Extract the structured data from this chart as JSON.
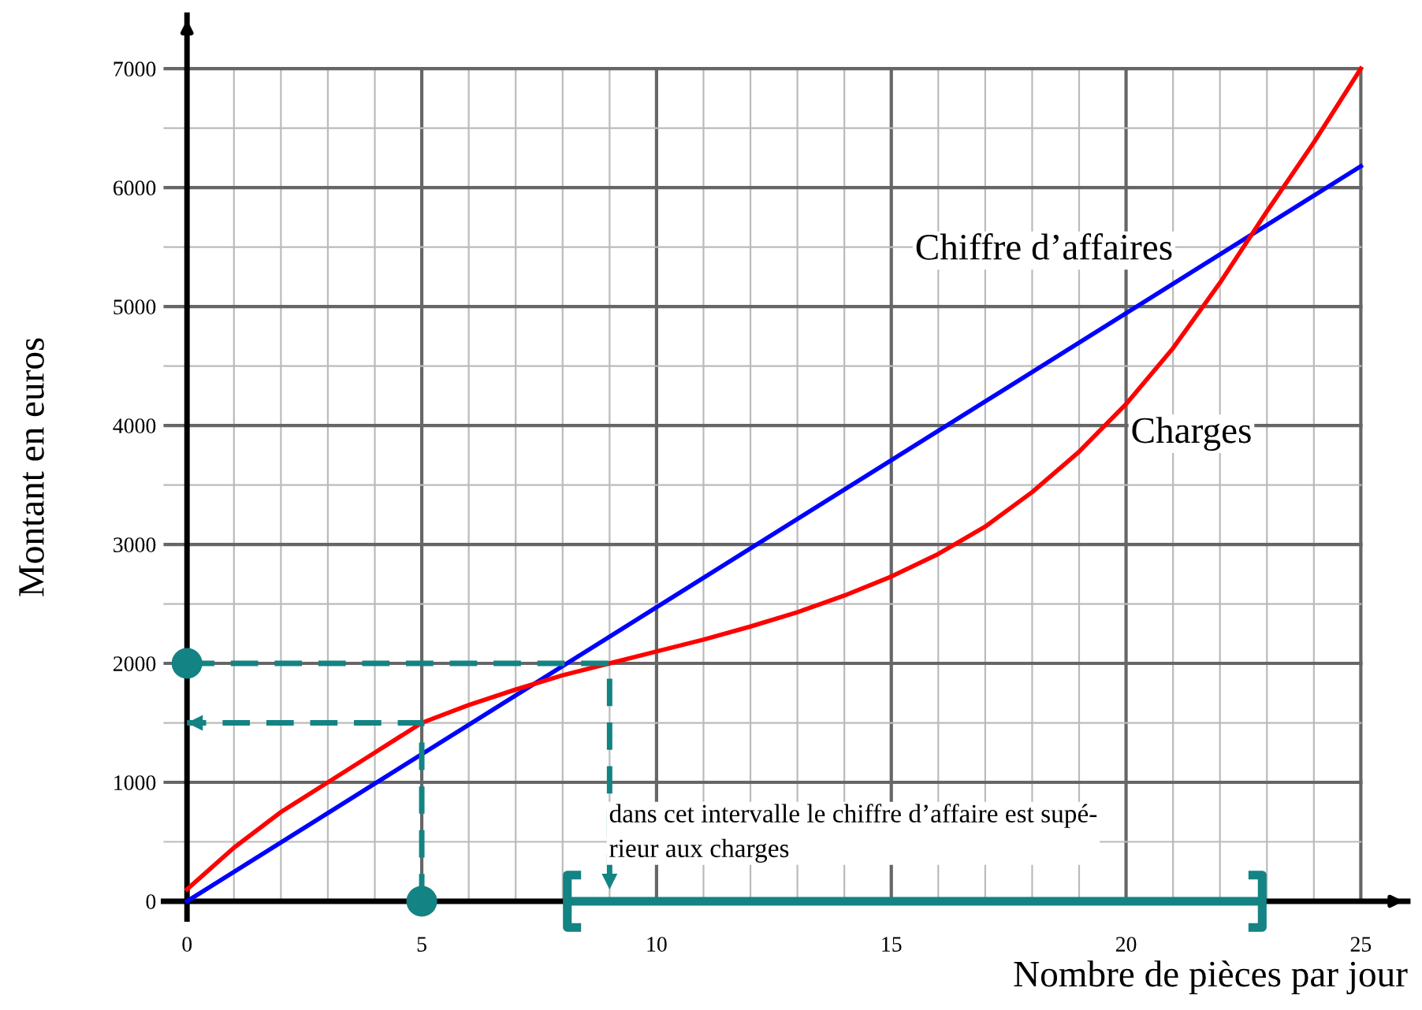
{
  "chart_data": {
    "type": "line",
    "xlabel": "Nombre de pièces par jour",
    "ylabel": "Montant en euros",
    "xlim": [
      -0.5,
      26
    ],
    "ylim": [
      -150,
      7450
    ],
    "xticks": [
      0,
      5,
      10,
      15,
      20,
      25
    ],
    "yticks": [
      0,
      1000,
      2000,
      3000,
      4000,
      5000,
      6000,
      7000
    ],
    "grid": true,
    "legend": false,
    "series": [
      {
        "name": "Chiffre d’affaires",
        "color": "#0000ff",
        "x": [
          0,
          25
        ],
        "values": [
          0,
          6180
        ]
      },
      {
        "name": "Charges",
        "color": "#ff0000",
        "x": [
          0,
          1,
          2,
          3,
          4,
          5,
          6,
          7,
          8,
          9,
          10,
          11,
          12,
          13,
          14,
          15,
          16,
          17,
          18,
          19,
          20,
          21,
          22,
          23,
          24,
          25
        ],
        "values": [
          100,
          450,
          750,
          1000,
          1250,
          1500,
          1650,
          1780,
          1900,
          2000,
          2100,
          2200,
          2310,
          2430,
          2570,
          2730,
          2920,
          3150,
          3440,
          3780,
          4180,
          4650,
          5200,
          5800,
          6380,
          7000
        ]
      },
      {
        "color": "#138383",
        "x": [
          0,
          9,
          9
        ],
        "values": [
          2000,
          2000,
          100
        ],
        "line_style": "dashed"
      },
      {
        "color": "#138383",
        "x": [
          5,
          5,
          0
        ],
        "values": [
          0,
          1500,
          1500
        ],
        "line_style": "dashed"
      },
      {
        "type": "scatter",
        "color": "#138383",
        "x": [
          0,
          5
        ],
        "values": [
          2000,
          0
        ],
        "marker": "circle"
      },
      {
        "color": "#138383",
        "x": [
          8.1,
          22.9
        ],
        "values": [
          0,
          0
        ],
        "line_style": "solid"
      }
    ],
    "annotations": [
      "dans cet intervalle le chiffre d’affaire est supé-\nrieur aux charges"
    ]
  }
}
